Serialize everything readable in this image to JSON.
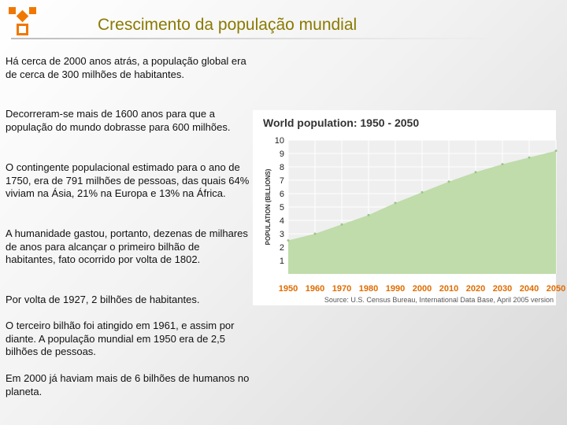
{
  "title": "Crescimento da população mundial",
  "paragraphs": [
    "Há cerca de 2000 anos atrás, a população global era de cerca de 300 milhões de habitantes.",
    "Decorreram-se mais de 1600 anos para que a população do mundo dobrasse para 600 milhões.",
    " O contingente populacional estimado para o ano de 1750, era de 791 milhões de pessoas, das quais 64%  viviam na Ásia, 21%  na Europa e 13%  na África.",
    "A humanidade gastou, portanto, dezenas de milhares de anos para alcançar o primeiro bilhão de habitantes, fato ocorrido por volta de 1802.",
    "Por volta de 1927, 2 bilhões de habitantes.",
    "O terceiro bilhão foi atingido em 1961, e assim por diante. A população mundial em 1950 era de 2,5 bilhões de pessoas.",
    "Em 2000 já haviam mais de 6 bilhões de humanos no planeta."
  ],
  "colors": {
    "title": "#8a7a00",
    "logo": "#f07800",
    "chart_fill": "#bfdcaa",
    "tick_labels": "#e06c00",
    "chart_title": "#333333"
  },
  "logo_icon": "orange-blocks-logo-icon",
  "chart_data": {
    "type": "area",
    "title": "World population: 1950 - 2050",
    "ylabel": "POPULATION (BILLIONS)",
    "xlabel": "",
    "x": [
      1950,
      1960,
      1970,
      1980,
      1990,
      2000,
      2010,
      2020,
      2030,
      2040,
      2050
    ],
    "values": [
      2.5,
      3.0,
      3.7,
      4.4,
      5.3,
      6.1,
      6.9,
      7.6,
      8.2,
      8.7,
      9.2
    ],
    "xlim": [
      1950,
      2050
    ],
    "ylim": [
      0,
      10
    ],
    "yticks": [
      1,
      2,
      3,
      4,
      5,
      6,
      7,
      8,
      9,
      10
    ],
    "grid": true,
    "source": "Source: U.S. Census Bureau, International Data Base, April 2005 version"
  }
}
